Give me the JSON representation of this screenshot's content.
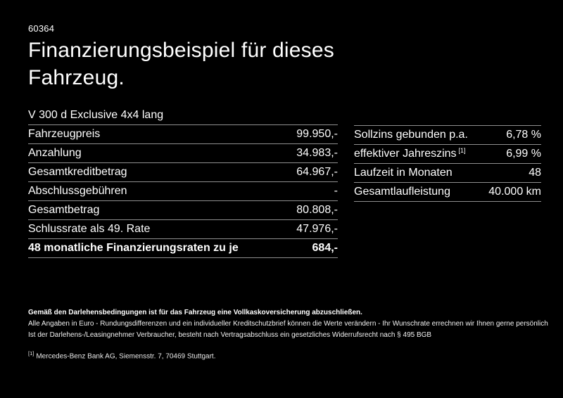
{
  "page": {
    "doc_number": "60364",
    "title_line1": "Finanzierungsbeispiel für dieses",
    "title_line2": "Fahrzeug.",
    "vehicle": "V 300 d Exclusive 4x4 lang"
  },
  "finance_table": {
    "rows": [
      {
        "label": "Fahrzeugpreis",
        "value": "99.950,-"
      },
      {
        "label": "Anzahlung",
        "value": "34.983,-"
      },
      {
        "label": "Gesamtkreditbetrag",
        "value": "64.967,-"
      },
      {
        "label": "Abschlussgebühren",
        "value": "-"
      },
      {
        "label": "Gesamtbetrag",
        "value": "80.808,-"
      },
      {
        "label": "Schlussrate als 49. Rate",
        "value": "47.976,-"
      }
    ],
    "total_row": {
      "label": "48 monatliche Finanzierungsraten zu je",
      "value": "684,-"
    }
  },
  "conditions_table": {
    "rows": [
      {
        "label": "Sollzins gebunden p.a.",
        "footnote": "",
        "value": "6,78 %"
      },
      {
        "label": "effektiver Jahreszins",
        "footnote": "[1]",
        "value": "6,99 %"
      },
      {
        "label": "Laufzeit in Monaten",
        "footnote": "",
        "value": "48"
      },
      {
        "label": "Gesamtlaufleistung",
        "footnote": "",
        "value": "40.000 km"
      }
    ]
  },
  "footer": {
    "bold_line": "Gemäß den Darlehensbedingungen ist für das Fahrzeug eine Vollkaskoversicherung abzuschließen.",
    "line2": "Alle Angaben in Euro - Rundungsdifferenzen und ein individueller Kreditschutzbrief können die Werte verändern - Ihr Wunschrate errechnen wir Ihnen gerne persönlich",
    "line3": "Ist der Darlehens-/Leasingnehmer Verbraucher, besteht nach Vertragsabschluss ein gesetzliches Widerrufsrecht nach § 495 BGB",
    "footnote_marker": "[1]",
    "footnote_text": "Mercedes-Benz Bank AG, Siemensstr. 7, 70469 Stuttgart."
  },
  "colors": {
    "background": "#000000",
    "text": "#ffffff",
    "divider": "#8f8f8f"
  }
}
